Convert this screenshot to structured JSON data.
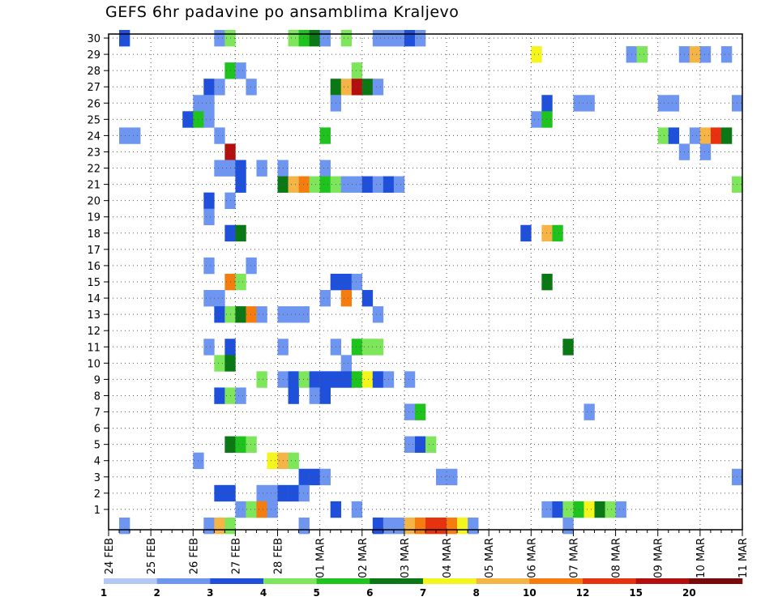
{
  "chart_data": {
    "type": "heatmap",
    "title": "GEFS 6hr padavine po ansamblima Kraljevo",
    "xlabel": "",
    "ylabel": "",
    "x_tick_labels": [
      "24 FEB",
      "25 FEB",
      "26 FEB",
      "27 FEB",
      "28 FEB",
      "01 MAR",
      "02 MAR",
      "03 MAR",
      "04 MAR",
      "05 MAR",
      "06 MAR",
      "07 MAR",
      "08 MAR",
      "09 MAR",
      "10 MAR",
      "11 MAR"
    ],
    "y_tick_labels": [
      "1",
      "2",
      "3",
      "4",
      "5",
      "6",
      "7",
      "8",
      "9",
      "10",
      "11",
      "12",
      "13",
      "14",
      "15",
      "16",
      "17",
      "18",
      "19",
      "20",
      "21",
      "22",
      "23",
      "24",
      "25",
      "26",
      "27",
      "28",
      "29",
      "30"
    ],
    "ylim": [
      0,
      30
    ],
    "time_step": "6hr",
    "grid": "dotted",
    "colorbar": {
      "labels": [
        "1",
        "2",
        "3",
        "4",
        "5",
        "6",
        "7",
        "8",
        "10",
        "12",
        "15",
        "20"
      ],
      "colors": [
        "#b4c8f5",
        "#6e96f0",
        "#1e50dc",
        "#7ee65a",
        "#1ec31e",
        "#0a7814",
        "#f5f51e",
        "#f5b446",
        "#f57d0f",
        "#e6320f",
        "#b40f0f",
        "#780a0a"
      ]
    },
    "cells": [
      [
        1,
        30,
        2
      ],
      [
        10,
        30,
        1
      ],
      [
        11,
        30,
        3
      ],
      [
        17,
        30,
        3
      ],
      [
        18,
        30,
        4
      ],
      [
        19,
        30,
        5
      ],
      [
        20,
        30,
        1
      ],
      [
        22,
        30,
        3
      ],
      [
        25,
        30,
        1
      ],
      [
        26,
        30,
        1
      ],
      [
        27,
        30,
        1
      ],
      [
        28,
        30,
        2
      ],
      [
        29,
        30,
        1
      ],
      [
        40,
        29,
        6
      ],
      [
        49,
        29,
        1
      ],
      [
        50,
        29,
        3
      ],
      [
        54,
        29,
        1
      ],
      [
        55,
        29,
        7
      ],
      [
        56,
        29,
        1
      ],
      [
        58,
        29,
        1
      ],
      [
        11,
        28,
        4
      ],
      [
        12,
        28,
        1
      ],
      [
        23,
        28,
        3
      ],
      [
        9,
        27,
        2
      ],
      [
        10,
        27,
        1
      ],
      [
        13,
        27,
        1
      ],
      [
        21,
        27,
        5
      ],
      [
        22,
        27,
        7
      ],
      [
        23,
        27,
        10
      ],
      [
        24,
        27,
        5
      ],
      [
        25,
        27,
        1
      ],
      [
        8,
        26,
        1
      ],
      [
        9,
        26,
        1
      ],
      [
        21,
        26,
        1
      ],
      [
        41,
        26,
        2
      ],
      [
        44,
        26,
        1
      ],
      [
        45,
        26,
        1
      ],
      [
        52,
        26,
        1
      ],
      [
        53,
        26,
        1
      ],
      [
        59,
        26,
        1
      ],
      [
        7,
        25,
        2
      ],
      [
        8,
        25,
        4
      ],
      [
        9,
        25,
        1
      ],
      [
        40,
        25,
        1
      ],
      [
        41,
        25,
        4
      ],
      [
        1,
        24,
        1
      ],
      [
        2,
        24,
        1
      ],
      [
        10,
        24,
        1
      ],
      [
        20,
        24,
        4
      ],
      [
        52,
        24,
        3
      ],
      [
        53,
        24,
        2
      ],
      [
        55,
        24,
        1
      ],
      [
        56,
        24,
        7
      ],
      [
        57,
        24,
        9
      ],
      [
        58,
        24,
        5
      ],
      [
        11,
        23,
        10
      ],
      [
        54,
        23,
        1
      ],
      [
        56,
        23,
        1
      ],
      [
        10,
        22,
        1
      ],
      [
        11,
        22,
        1
      ],
      [
        12,
        22,
        2
      ],
      [
        14,
        22,
        1
      ],
      [
        16,
        22,
        1
      ],
      [
        20,
        22,
        1
      ],
      [
        12,
        21,
        2
      ],
      [
        16,
        21,
        5
      ],
      [
        17,
        21,
        7
      ],
      [
        18,
        21,
        8
      ],
      [
        19,
        21,
        3
      ],
      [
        20,
        21,
        4
      ],
      [
        21,
        21,
        3
      ],
      [
        22,
        21,
        1
      ],
      [
        23,
        21,
        1
      ],
      [
        24,
        21,
        2
      ],
      [
        25,
        21,
        1
      ],
      [
        26,
        21,
        2
      ],
      [
        27,
        21,
        1
      ],
      [
        59,
        21,
        3
      ],
      [
        9,
        20,
        2
      ],
      [
        11,
        20,
        1
      ],
      [
        9,
        19,
        1
      ],
      [
        11,
        18,
        2
      ],
      [
        12,
        18,
        5
      ],
      [
        39,
        18,
        2
      ],
      [
        41,
        18,
        7
      ],
      [
        42,
        18,
        4
      ],
      [
        9,
        16,
        1
      ],
      [
        13,
        16,
        1
      ],
      [
        11,
        15,
        8
      ],
      [
        12,
        15,
        3
      ],
      [
        21,
        15,
        2
      ],
      [
        22,
        15,
        2
      ],
      [
        23,
        15,
        1
      ],
      [
        41,
        15,
        5
      ],
      [
        9,
        14,
        1
      ],
      [
        10,
        14,
        1
      ],
      [
        20,
        14,
        1
      ],
      [
        22,
        14,
        8
      ],
      [
        24,
        14,
        2
      ],
      [
        10,
        13,
        2
      ],
      [
        11,
        13,
        3
      ],
      [
        12,
        13,
        5
      ],
      [
        13,
        13,
        8
      ],
      [
        14,
        13,
        1
      ],
      [
        16,
        13,
        1
      ],
      [
        17,
        13,
        1
      ],
      [
        18,
        13,
        1
      ],
      [
        25,
        13,
        1
      ],
      [
        9,
        11,
        1
      ],
      [
        11,
        11,
        2
      ],
      [
        16,
        11,
        1
      ],
      [
        21,
        11,
        1
      ],
      [
        23,
        11,
        4
      ],
      [
        24,
        11,
        3
      ],
      [
        25,
        11,
        3
      ],
      [
        43,
        11,
        5
      ],
      [
        10,
        10,
        3
      ],
      [
        11,
        10,
        5
      ],
      [
        22,
        10,
        1
      ],
      [
        14,
        9,
        3
      ],
      [
        16,
        9,
        1
      ],
      [
        17,
        9,
        2
      ],
      [
        18,
        9,
        3
      ],
      [
        19,
        9,
        2
      ],
      [
        20,
        9,
        2
      ],
      [
        21,
        9,
        2
      ],
      [
        22,
        9,
        2
      ],
      [
        23,
        9,
        4
      ],
      [
        24,
        9,
        6
      ],
      [
        25,
        9,
        2
      ],
      [
        26,
        9,
        1
      ],
      [
        28,
        9,
        1
      ],
      [
        10,
        8,
        2
      ],
      [
        11,
        8,
        3
      ],
      [
        12,
        8,
        1
      ],
      [
        17,
        8,
        2
      ],
      [
        19,
        8,
        1
      ],
      [
        20,
        8,
        2
      ],
      [
        28,
        7,
        1
      ],
      [
        29,
        7,
        4
      ],
      [
        45,
        7,
        1
      ],
      [
        11,
        5,
        5
      ],
      [
        12,
        5,
        4
      ],
      [
        13,
        5,
        3
      ],
      [
        28,
        5,
        1
      ],
      [
        29,
        5,
        2
      ],
      [
        30,
        5,
        3
      ],
      [
        8,
        4,
        1
      ],
      [
        15,
        4,
        6
      ],
      [
        16,
        4,
        7
      ],
      [
        17,
        4,
        3
      ],
      [
        18,
        3,
        2
      ],
      [
        19,
        3,
        2
      ],
      [
        20,
        3,
        1
      ],
      [
        31,
        3,
        1
      ],
      [
        32,
        3,
        1
      ],
      [
        59,
        3,
        1
      ],
      [
        10,
        2,
        2
      ],
      [
        11,
        2,
        2
      ],
      [
        14,
        2,
        1
      ],
      [
        15,
        2,
        1
      ],
      [
        16,
        2,
        2
      ],
      [
        17,
        2,
        2
      ],
      [
        18,
        2,
        1
      ],
      [
        12,
        1,
        1
      ],
      [
        13,
        1,
        3
      ],
      [
        14,
        1,
        8
      ],
      [
        15,
        1,
        1
      ],
      [
        21,
        1,
        2
      ],
      [
        23,
        1,
        1
      ],
      [
        41,
        1,
        1
      ],
      [
        42,
        1,
        2
      ],
      [
        43,
        1,
        3
      ],
      [
        44,
        1,
        4
      ],
      [
        45,
        1,
        6
      ],
      [
        46,
        1,
        5
      ],
      [
        47,
        1,
        3
      ],
      [
        48,
        1,
        1
      ],
      [
        1,
        0,
        1
      ],
      [
        9,
        0,
        1
      ],
      [
        10,
        0,
        7
      ],
      [
        11,
        0,
        3
      ],
      [
        18,
        0,
        1
      ],
      [
        25,
        0,
        2
      ],
      [
        26,
        0,
        1
      ],
      [
        27,
        0,
        1
      ],
      [
        28,
        0,
        7
      ],
      [
        29,
        0,
        8
      ],
      [
        30,
        0,
        9
      ],
      [
        31,
        0,
        9
      ],
      [
        32,
        0,
        8
      ],
      [
        33,
        0,
        6
      ],
      [
        34,
        0,
        1
      ],
      [
        43,
        0,
        1
      ]
    ]
  }
}
